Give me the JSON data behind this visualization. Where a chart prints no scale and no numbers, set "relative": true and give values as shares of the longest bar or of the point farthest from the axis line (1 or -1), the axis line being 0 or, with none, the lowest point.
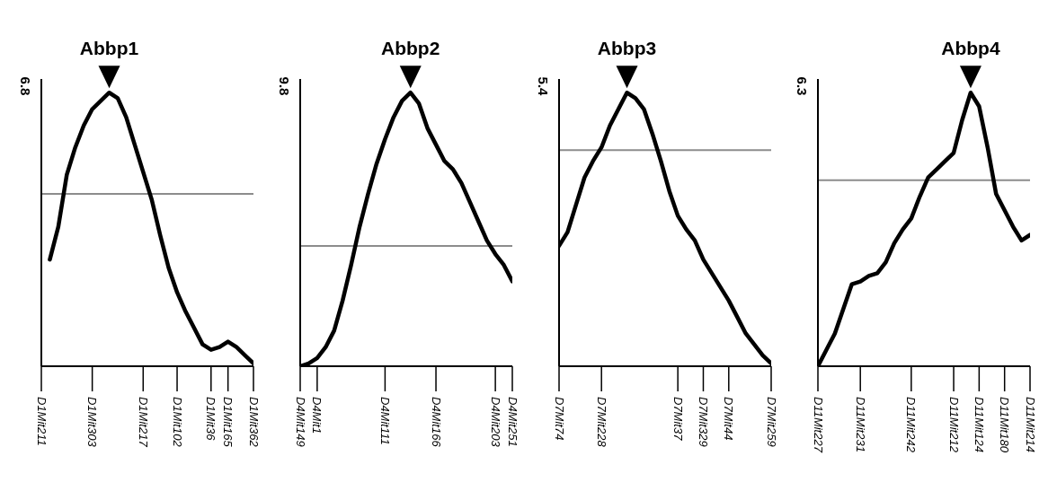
{
  "chart_data": [
    {
      "type": "line",
      "relative": true,
      "color": "#000000",
      "grid": false,
      "legend": false,
      "marker": "none",
      "categories": [
        "D1Mit211",
        null,
        null,
        null,
        null,
        null,
        "D1Mit303",
        null,
        null,
        null,
        null,
        null,
        "D1Mit217",
        null,
        null,
        null,
        "D1Mit102",
        null,
        null,
        null,
        "D1Mit36",
        null,
        "D1Mit165",
        null,
        null,
        "D1Mit362"
      ],
      "values": [
        null,
        0.39,
        0.51,
        0.7,
        0.8,
        0.88,
        0.94,
        0.97,
        1,
        0.98,
        0.91,
        0.81,
        0.71,
        0.61,
        0.48,
        0.36,
        0.27,
        0.2,
        0.14,
        0.08,
        0.06,
        0.07,
        0.09,
        0.07,
        0.04,
        0.01
      ],
      "ref_lines": [
        {
          "axis": "y",
          "value": 0.63,
          "color": "#8c8c8c"
        }
      ],
      "annotations": [
        "6.8",
        "Abbp1"
      ]
    },
    {
      "type": "line",
      "relative": true,
      "color": "#000000",
      "grid": false,
      "legend": false,
      "marker": "none",
      "categories": [
        "D4Mit149",
        null,
        "D4Mit1",
        null,
        null,
        null,
        null,
        null,
        null,
        null,
        "D4Mit111",
        null,
        null,
        null,
        null,
        null,
        "D4Mit166",
        null,
        null,
        null,
        null,
        null,
        null,
        "D4Mit203",
        null,
        "D4Mit251"
      ],
      "values": [
        0,
        0.01,
        0.03,
        0.07,
        0.13,
        0.24,
        0.37,
        0.51,
        0.63,
        0.74,
        0.83,
        0.91,
        0.97,
        1,
        0.96,
        0.87,
        0.81,
        0.75,
        0.72,
        0.67,
        0.6,
        0.53,
        0.46,
        0.41,
        0.37,
        0.31
      ],
      "ref_lines": [
        {
          "axis": "y",
          "value": 0.44,
          "color": "#8c8c8c"
        }
      ],
      "annotations": [
        "9.8",
        "Abbp2"
      ]
    },
    {
      "type": "line",
      "relative": true,
      "color": "#000000",
      "grid": false,
      "legend": false,
      "marker": "none",
      "categories": [
        "D7Mit74",
        null,
        null,
        null,
        null,
        "D7Mit228",
        null,
        null,
        null,
        null,
        null,
        null,
        null,
        null,
        "D7Mit37",
        null,
        null,
        "D7Mit329",
        null,
        null,
        "D7Mit44",
        null,
        null,
        null,
        null,
        "D7Mit259"
      ],
      "values": [
        0.44,
        0.49,
        0.59,
        0.69,
        0.75,
        0.8,
        0.88,
        0.94,
        1,
        0.98,
        0.94,
        0.85,
        0.75,
        0.64,
        0.55,
        0.5,
        0.46,
        0.39,
        0.34,
        0.29,
        0.24,
        0.18,
        0.12,
        0.08,
        0.04,
        0.01
      ],
      "ref_lines": [
        {
          "axis": "y",
          "value": 0.79,
          "color": "#8c8c8c"
        }
      ],
      "annotations": [
        "5.4",
        "Abbp3"
      ]
    },
    {
      "type": "line",
      "relative": true,
      "color": "#000000",
      "grid": false,
      "legend": false,
      "marker": "none",
      "categories": [
        "D11Mit227",
        null,
        null,
        null,
        null,
        "D11Mit231",
        null,
        null,
        null,
        null,
        null,
        "D11Mit242",
        null,
        null,
        null,
        null,
        "D11Mit212",
        null,
        null,
        "D11Mit124",
        null,
        null,
        "D11Mit180",
        null,
        null,
        "D11Mit214"
      ],
      "values": [
        0,
        0.06,
        0.12,
        0.21,
        0.3,
        0.31,
        0.33,
        0.34,
        0.38,
        0.45,
        0.5,
        0.54,
        0.62,
        0.69,
        0.72,
        0.75,
        0.78,
        0.9,
        1,
        0.95,
        0.8,
        0.63,
        0.57,
        0.51,
        0.46,
        0.48
      ],
      "ref_lines": [
        {
          "axis": "y",
          "value": 0.68,
          "color": "#8c8c8c"
        }
      ],
      "annotations": [
        "6.3",
        "Abbp4"
      ]
    }
  ]
}
